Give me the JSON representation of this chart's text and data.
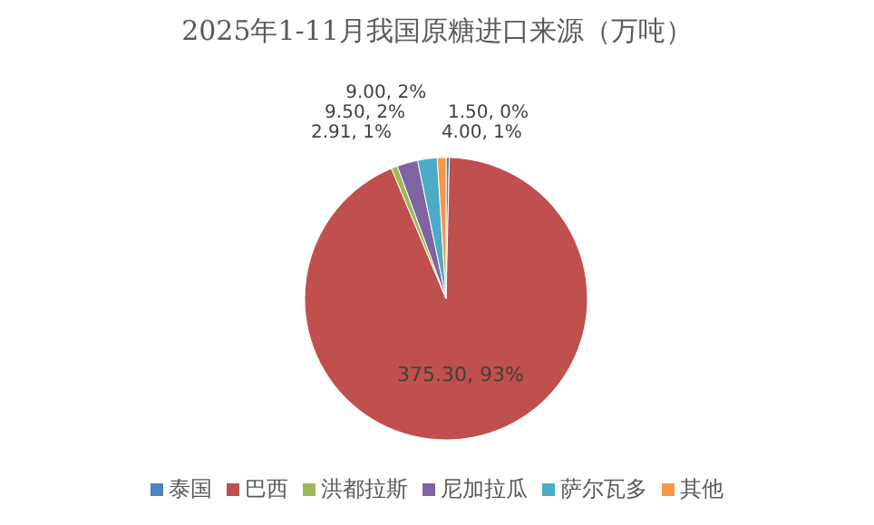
{
  "chart_data": {
    "type": "pie",
    "title": "2025年1-11月我国原糖进口来源（万吨）",
    "categories": [
      "泰国",
      "巴西",
      "洪都拉斯",
      "尼加拉瓜",
      "萨尔瓦多",
      "其他"
    ],
    "values": [
      1.5,
      375.3,
      2.91,
      9.5,
      9.0,
      4.0
    ],
    "colors": [
      "#4f81bd",
      "#c0504d",
      "#9bbb59",
      "#8064a2",
      "#4bacc6",
      "#f79646"
    ],
    "value_labels": [
      "1.50, 0%",
      "375.30, 93%",
      "2.91, 1%",
      "9.50, 2%",
      "9.00, 2%",
      "4.00, 1%"
    ],
    "legend": "bottom"
  }
}
